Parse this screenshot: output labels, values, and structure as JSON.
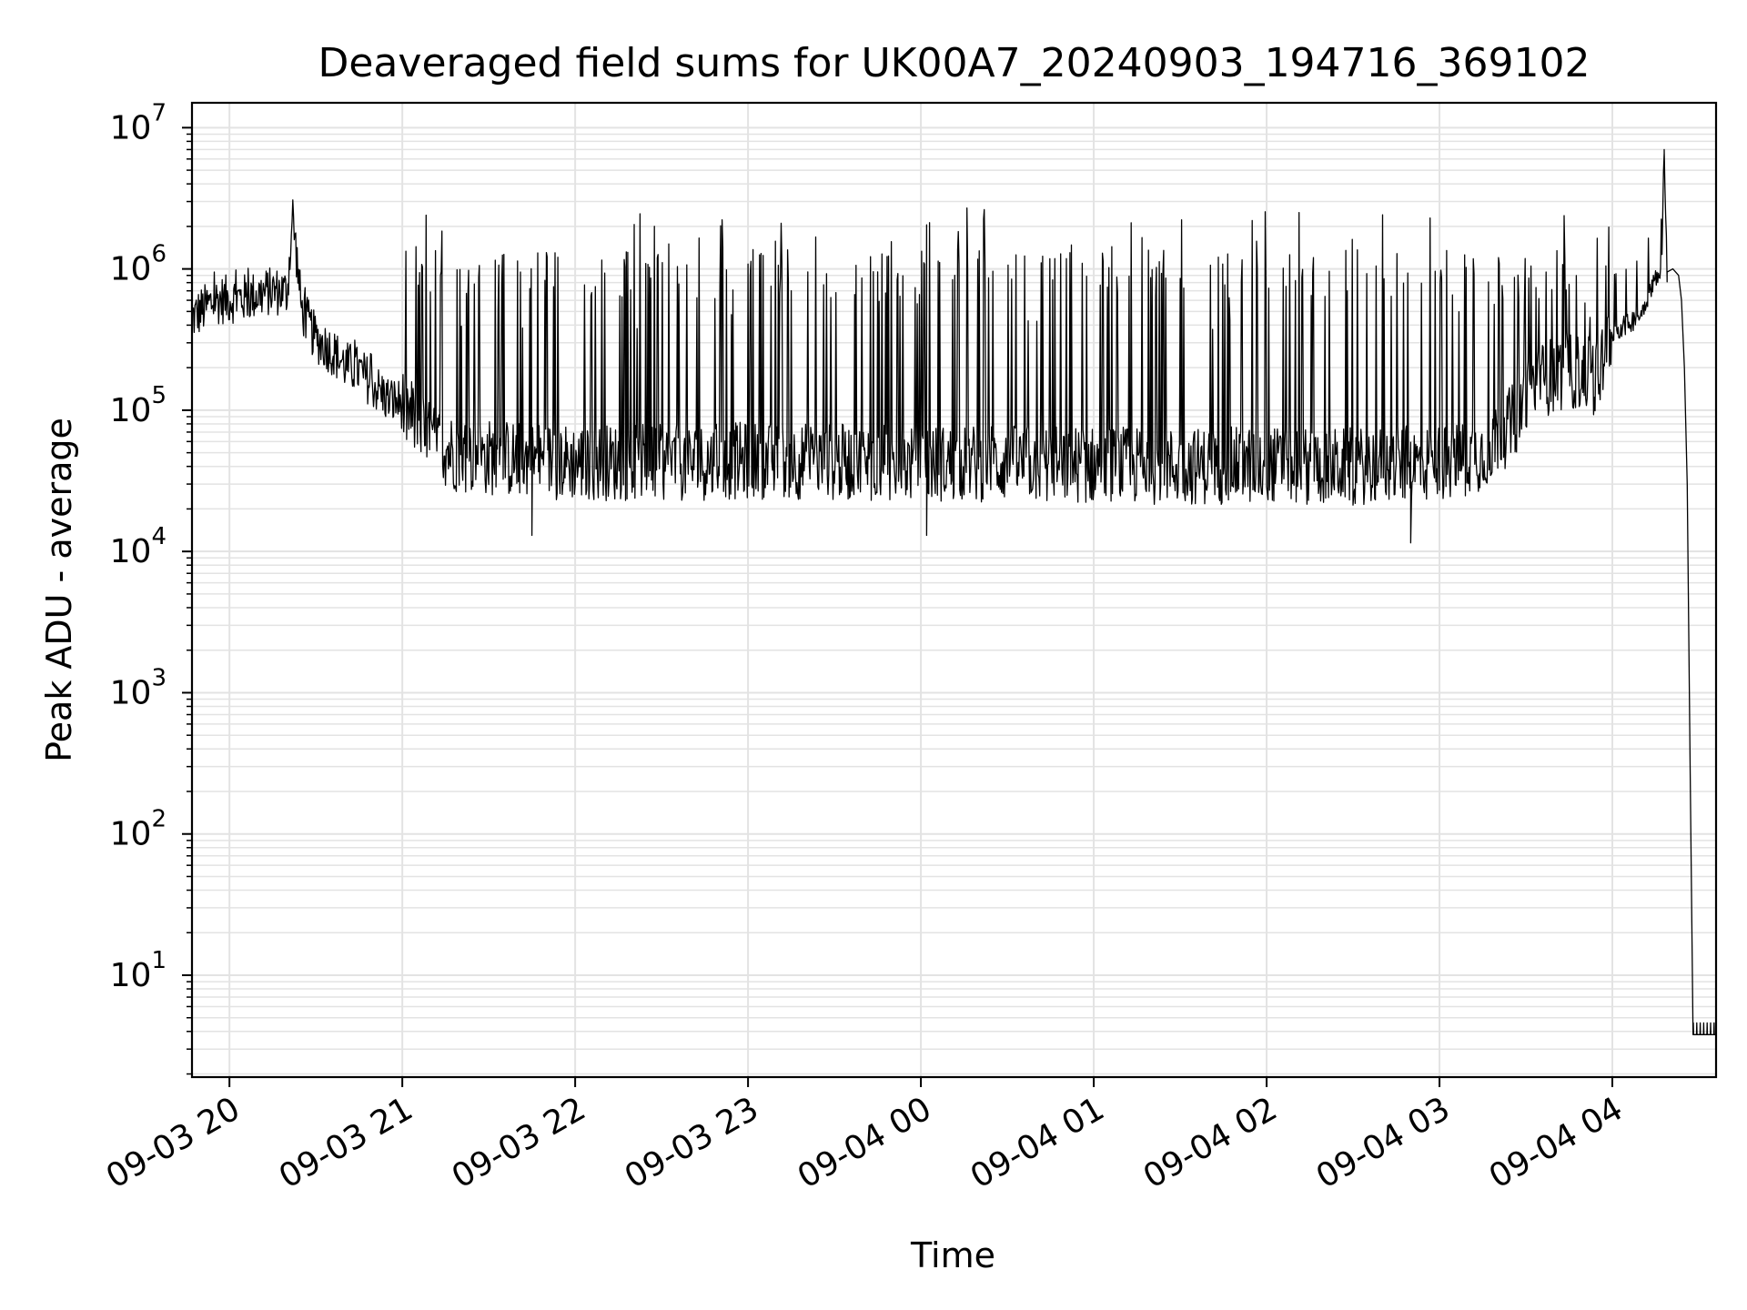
{
  "chart_data": {
    "type": "line",
    "title": "Deaveraged field sums for UK00A7_20240903_194716_369102",
    "xlabel": "Time",
    "ylabel": "Peak ADU - average",
    "yscale": "log",
    "ylim": [
      1.9,
      15000000
    ],
    "xlim": [
      "2024-09-03 19:47",
      "2024-09-04 04:36"
    ],
    "grid": true,
    "line_color": "#000000",
    "grid_color": "#e3e3e3",
    "x_ticks": [
      {
        "value": "2024-09-03 20:00",
        "label": "09-03 20"
      },
      {
        "value": "2024-09-03 21:00",
        "label": "09-03 21"
      },
      {
        "value": "2024-09-03 22:00",
        "label": "09-03 22"
      },
      {
        "value": "2024-09-03 23:00",
        "label": "09-03 23"
      },
      {
        "value": "2024-09-04 00:00",
        "label": "09-04 00"
      },
      {
        "value": "2024-09-04 01:00",
        "label": "09-04 01"
      },
      {
        "value": "2024-09-04 02:00",
        "label": "09-04 02"
      },
      {
        "value": "2024-09-04 03:00",
        "label": "09-04 03"
      },
      {
        "value": "2024-09-04 04:00",
        "label": "09-04 04"
      }
    ],
    "y_ticks": [
      {
        "value": 10,
        "base": "10",
        "exp": "1"
      },
      {
        "value": 100,
        "base": "10",
        "exp": "2"
      },
      {
        "value": 1000,
        "base": "10",
        "exp": "3"
      },
      {
        "value": 10000,
        "base": "10",
        "exp": "4"
      },
      {
        "value": 100000,
        "base": "10",
        "exp": "5"
      },
      {
        "value": 1000000,
        "base": "10",
        "exp": "6"
      },
      {
        "value": 10000000,
        "base": "10",
        "exp": "7"
      }
    ],
    "series": [
      {
        "points": [
          [
            "2024-09-03 19:47",
            450000
          ],
          [
            "2024-09-03 19:55",
            600000
          ],
          [
            "2024-09-03 20:05",
            620000
          ],
          [
            "2024-09-03 20:15",
            700000
          ],
          [
            "2024-09-03 20:20",
            680000
          ],
          [
            "2024-09-03 20:22",
            2400000
          ],
          [
            "2024-09-03 20:25",
            520000
          ],
          [
            "2024-09-03 20:30",
            320000
          ],
          [
            "2024-09-03 20:35",
            270000
          ],
          [
            "2024-09-03 20:40",
            210000
          ],
          [
            "2024-09-03 20:45",
            190000
          ],
          [
            "2024-09-03 20:50",
            150000
          ],
          [
            "2024-09-03 20:55",
            120000
          ],
          [
            "2024-09-03 21:00",
            110000
          ],
          [
            "2024-09-03 21:05",
            80000
          ],
          [
            "2024-09-03 21:10",
            60000
          ],
          [
            "2024-09-03 21:20",
            48000
          ],
          [
            "2024-09-03 21:40",
            45000
          ],
          [
            "2024-09-03 22:00",
            43000
          ],
          [
            "2024-09-03 22:30",
            42000
          ],
          [
            "2024-09-03 23:00",
            44000
          ],
          [
            "2024-09-03 23:30",
            43000
          ],
          [
            "2024-09-04 00:00",
            42000
          ],
          [
            "2024-09-04 00:30",
            42000
          ],
          [
            "2024-09-04 01:00",
            41000
          ],
          [
            "2024-09-04 01:30",
            40000
          ],
          [
            "2024-09-04 02:00",
            41000
          ],
          [
            "2024-09-04 02:30",
            40000
          ],
          [
            "2024-09-04 03:00",
            42000
          ],
          [
            "2024-09-04 03:15",
            50000
          ],
          [
            "2024-09-04 03:25",
            80000
          ],
          [
            "2024-09-04 03:30",
            120000
          ],
          [
            "2024-09-04 03:35",
            160000
          ],
          [
            "2024-09-04 03:40",
            180000
          ],
          [
            "2024-09-04 03:45",
            190000
          ],
          [
            "2024-09-04 03:55",
            170000
          ],
          [
            "2024-09-04 04:00",
            360000
          ],
          [
            "2024-09-04 04:05",
            400000
          ],
          [
            "2024-09-04 04:10",
            480000
          ],
          [
            "2024-09-04 04:14",
            800000
          ],
          [
            "2024-09-04 04:17",
            900000
          ],
          [
            "2024-09-04 04:18",
            7000000
          ],
          [
            "2024-09-04 04:19",
            950000
          ],
          [
            "2024-09-04 04:21",
            1000000
          ],
          [
            "2024-09-04 04:23",
            900000
          ],
          [
            "2024-09-04 04:24",
            600000
          ],
          [
            "2024-09-04 04:25",
            200000
          ],
          [
            "2024-09-04 04:26",
            30000
          ],
          [
            "2024-09-04 04:27",
            300
          ],
          [
            "2024-09-04 04:28",
            3.8
          ],
          [
            "2024-09-04 04:36",
            3.8
          ]
        ],
        "noise_range": [
          "2024-09-03 21:00",
          "2024-09-04 04:00"
        ],
        "typical_min": 20000,
        "typical_spike_max": 1000000,
        "notable_minima": [
          [
            "2024-09-03 21:45",
            13000
          ],
          [
            "2024-09-04 00:02",
            13000
          ],
          [
            "2024-09-04 02:50",
            11500
          ]
        ]
      }
    ]
  }
}
